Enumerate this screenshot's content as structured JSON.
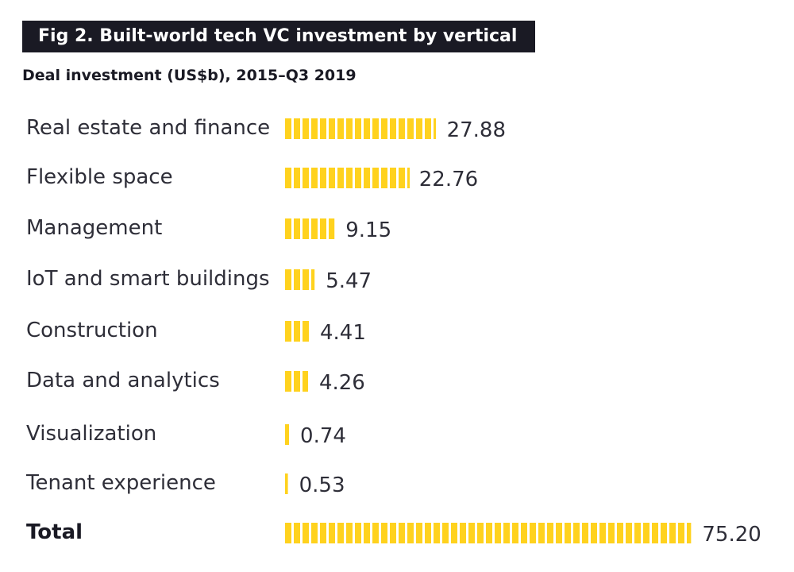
{
  "header": {
    "title": "Fig 2. Built-world tech VC investment by vertical",
    "subtitle": "Deal investment (US$b), 2015–Q3 2019"
  },
  "colors": {
    "bar": "#ffd21e",
    "title_background": "#1a1a24",
    "text": "#2e2e38"
  },
  "chart_data": {
    "type": "bar",
    "orientation": "horizontal",
    "title": "Fig 2. Built-world tech VC investment by vertical",
    "subtitle": "Deal investment (US$b), 2015–Q3 2019",
    "categories": [
      "Real estate and finance",
      "Flexible space",
      "Management",
      "IoT and smart buildings",
      "Construction",
      "Data and analytics",
      "Visualization",
      "Tenant experience",
      "Total"
    ],
    "values": [
      27.88,
      22.76,
      9.15,
      5.47,
      4.41,
      4.26,
      0.74,
      0.53,
      75.2
    ],
    "value_labels": [
      "27.88",
      "22.76",
      "9.15",
      "5.47",
      "4.41",
      "4.26",
      "0.74",
      "0.53",
      "75.20"
    ],
    "grid": false,
    "legend": "none"
  }
}
